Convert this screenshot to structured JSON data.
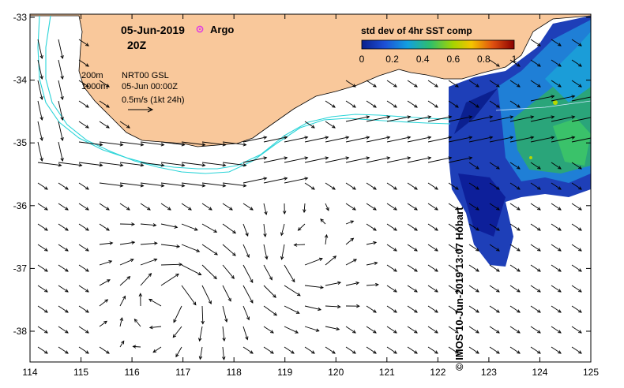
{
  "map": {
    "date": "05-Jun-2019",
    "time": "20Z",
    "argo_label": "Argo",
    "colorbar_title": "std dev of 4hr SST comp",
    "colorbar_ticks": [
      "0",
      "0.2",
      "0.4",
      "0.6",
      "0.8",
      "1"
    ],
    "colorbar_range": [
      0,
      1
    ],
    "contour_200": "200m",
    "contour_1000": "1000m",
    "product": "NRT00 GSL",
    "product_time": "05-Jun 00:00Z",
    "scale_label": "0.5m/s (1kt 24h)",
    "credit": "© IMOS 10-Jun-2019 13:07 Hobart",
    "x_ticks": [
      "114",
      "115",
      "116",
      "117",
      "118",
      "119",
      "120",
      "121",
      "122",
      "123",
      "124",
      "125"
    ],
    "y_ticks": [
      "-33",
      "-34",
      "-35",
      "-36",
      "-37",
      "-38"
    ],
    "colors": {
      "land": "#f9c89b",
      "contour": "#2ad4d8",
      "argo": "#e040e0",
      "arrow": "#000000"
    }
  }
}
